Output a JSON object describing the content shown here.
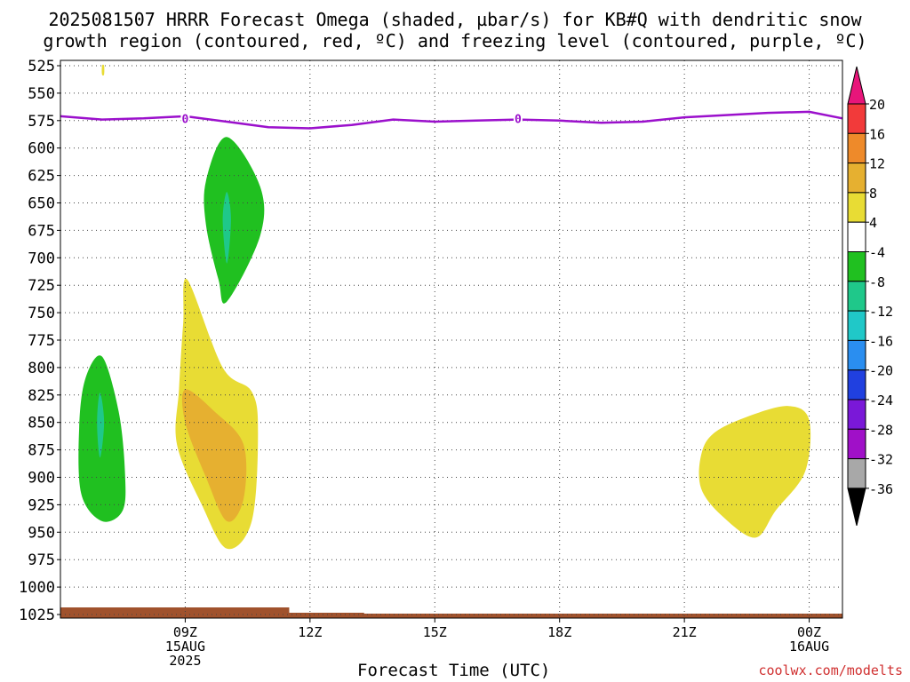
{
  "title_line1": "2025081507 HRRR Forecast Omega (shaded, µbar/s) for KB#Q with dendritic snow",
  "title_line2": "growth region (contoured, red, ºC) and freezing level (contoured, purple, ºC)",
  "credit": "coolwx.com/modelts",
  "chart_data": {
    "type": "heatmap",
    "xlabel": "Forecast Time (UTC)",
    "ylabel": "",
    "y_axis_inverted": true,
    "xlim_hours": [
      6.0,
      24.8
    ],
    "ylim": [
      1025,
      525
    ],
    "y_ticks": [
      525,
      550,
      575,
      600,
      625,
      650,
      675,
      700,
      725,
      750,
      775,
      800,
      825,
      850,
      875,
      900,
      925,
      950,
      975,
      1000,
      1025
    ],
    "x_ticks": [
      {
        "hour": 9,
        "labels": [
          "09Z",
          "15AUG",
          "2025"
        ]
      },
      {
        "hour": 12,
        "labels": [
          "12Z"
        ]
      },
      {
        "hour": 15,
        "labels": [
          "15Z"
        ]
      },
      {
        "hour": 18,
        "labels": [
          "18Z"
        ]
      },
      {
        "hour": 21,
        "labels": [
          "21Z"
        ]
      },
      {
        "hour": 24,
        "labels": [
          "00Z",
          "16AUG"
        ]
      }
    ],
    "grid": true,
    "colorbar": {
      "labels": [
        "20",
        "16",
        "12",
        "8",
        "4",
        "-4",
        "-8",
        "-12",
        "-16",
        "-20",
        "-24",
        "-28",
        "-32",
        "-36"
      ],
      "colors": [
        "#e8157a",
        "#f23a3a",
        "#ee8a2a",
        "#e6b030",
        "#e8dc34",
        "#ffffff",
        "#20c020",
        "#1fc88a",
        "#20c8c8",
        "#2a8ef0",
        "#2040e0",
        "#7a18d8",
        "#a010c8",
        "#a8a8a8",
        "#000000"
      ]
    },
    "freezing_level": {
      "label": "0",
      "color": "#9b10cc",
      "hours": [
        6.0,
        7.0,
        8.0,
        9.0,
        10.0,
        11.0,
        12.0,
        13.0,
        14.0,
        15.0,
        16.0,
        17.0,
        18.0,
        19.0,
        20.0,
        21.0,
        22.0,
        23.0,
        24.0,
        24.8
      ],
      "pressure": [
        571,
        574,
        573,
        571,
        576,
        581,
        582,
        579,
        574,
        576,
        575,
        574,
        575,
        577,
        576,
        572,
        570,
        568,
        567,
        573
      ]
    },
    "surface_color": "#a0522d",
    "shaded_regions": [
      {
        "value_range": "4 to 8",
        "color": "#e8dc34",
        "hours": [
          9.05,
          9.9,
          10.6,
          10.75,
          10.6,
          10.0,
          9.4,
          8.8,
          8.85,
          8.95
        ],
        "pressure": [
          720,
          800,
          822,
          860,
          940,
          965,
          925,
          870,
          820,
          760
        ]
      },
      {
        "value_range": "8 to 12",
        "color": "#e6b030",
        "hours": [
          9.0,
          9.7,
          10.4,
          10.4,
          10.0,
          9.5,
          9.0
        ],
        "pressure": [
          820,
          840,
          870,
          920,
          940,
          900,
          850
        ]
      },
      {
        "value_range": "4 to 8",
        "color": "#e8dc34",
        "hours": [
          22.5,
          23.5,
          24.0,
          23.9,
          23.2,
          22.7,
          21.9,
          21.4,
          21.4,
          21.7
        ],
        "pressure": [
          845,
          835,
          848,
          895,
          930,
          955,
          935,
          910,
          880,
          860
        ]
      },
      {
        "value_range": "-8 to -4",
        "color": "#20c020",
        "hours": [
          10.0,
          10.8,
          10.8,
          10.0,
          9.8,
          9.5,
          9.5
        ],
        "pressure": [
          590,
          635,
          680,
          740,
          720,
          670,
          630
        ]
      },
      {
        "value_range": "-12 to -8",
        "color": "#1fc88a",
        "hours": [
          10.0,
          10.1,
          10.0,
          9.9
        ],
        "pressure": [
          640,
          665,
          705,
          665
        ]
      },
      {
        "value_range": "-8 to -4",
        "color": "#20c020",
        "hours": [
          7.0,
          7.4,
          7.55,
          7.5,
          7.0,
          6.5,
          6.45,
          6.6
        ],
        "pressure": [
          790,
          840,
          895,
          930,
          940,
          915,
          855,
          810
        ]
      },
      {
        "value_range": "-12 to -8",
        "color": "#1fc88a",
        "hours": [
          6.95,
          7.05,
          6.95,
          6.88
        ],
        "pressure": [
          823,
          850,
          882,
          850
        ]
      },
      {
        "value_range": "4 to 8",
        "color": "#e8dc34",
        "hours": [
          7.0,
          7.05,
          7.05,
          7.0
        ],
        "pressure": [
          525,
          525,
          533,
          533
        ]
      }
    ]
  }
}
